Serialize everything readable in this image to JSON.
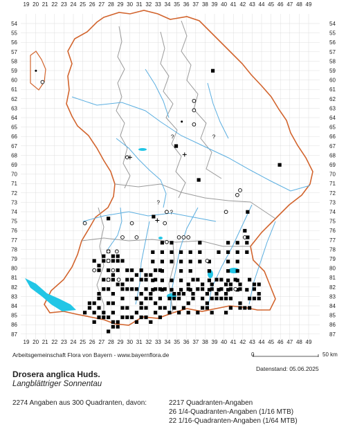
{
  "map": {
    "credit": "Arbeitsgemeinschaft Flora von Bayern - www.bayernflora.de",
    "date_label": "Datenstand: 05.06.2025",
    "species_name": "Drosera anglica Huds.",
    "common_name": "Langblättriger Sonnentau",
    "summary": "2274 Angaben aus 300 Quadranten, davon:",
    "breakdown": [
      "2217 Quadranten-Angaben",
      "26 1/4-Quadranten-Angaben (1/16 MTB)",
      "22 1/16-Quadranten-Angaben (1/64 MTB)"
    ],
    "scale_start": "0",
    "scale_end": "50 km",
    "x_ticks": [
      "19",
      "20",
      "21",
      "22",
      "23",
      "24",
      "25",
      "26",
      "27",
      "28",
      "29",
      "30",
      "31",
      "32",
      "33",
      "34",
      "35",
      "36",
      "37",
      "38",
      "39",
      "40",
      "41",
      "42",
      "43",
      "44",
      "45",
      "46",
      "47",
      "48",
      "49"
    ],
    "y_ticks": [
      "54",
      "55",
      "56",
      "57",
      "58",
      "59",
      "60",
      "61",
      "62",
      "63",
      "64",
      "65",
      "66",
      "67",
      "68",
      "69",
      "70",
      "71",
      "72",
      "73",
      "74",
      "75",
      "76",
      "77",
      "78",
      "79",
      "80",
      "81",
      "82",
      "83",
      "84",
      "85",
      "86",
      "87"
    ],
    "colors": {
      "border_state": "#d2642d",
      "border_district": "#9a9a9a",
      "river": "#5aaee0",
      "lake": "#22c6e6",
      "filled": "#000000",
      "grid": "#cccccc"
    },
    "marker_legend": {
      "filled_square": "current record",
      "open_circle": "old record",
      "plus": "uncertain / introduced",
      "question": "doubtful"
    }
  }
}
